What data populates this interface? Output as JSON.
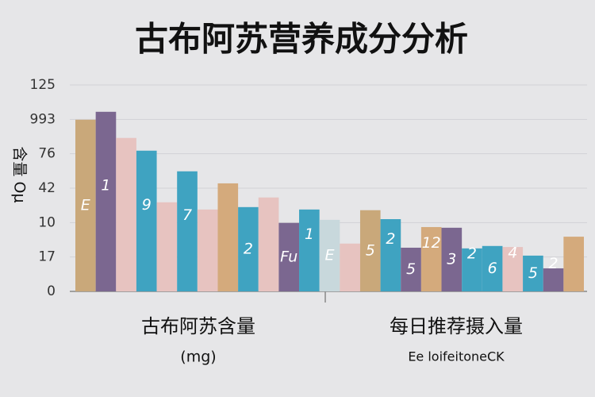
{
  "chart_data": {
    "type": "bar",
    "title": "古布阿苏营养成分分析",
    "y_label": "含量 Oμ",
    "groups": [
      {
        "label": "古布阿苏含量",
        "sublabel": "(mg)"
      },
      {
        "label": "每日推荐摄入量",
        "sublabel": "Ee loifeitoneCK"
      }
    ],
    "ylim": [
      0,
      6
    ],
    "yticks": [
      0,
      {
        "value": 1,
        "label": "17"
      },
      {
        "value": 2,
        "label": "10"
      },
      {
        "value": 3,
        "label": "42"
      },
      {
        "value": 4,
        "label": "76"
      },
      {
        "value": 5,
        "label": "993"
      },
      {
        "value": 6,
        "label": "125"
      }
    ],
    "grid": true,
    "values": [
      4.99,
      5.22,
      4.46,
      4.09,
      2.59,
      3.49,
      2.38,
      3.14,
      2.45,
      2.73,
      1.99,
      2.38,
      2.08,
      1.39,
      2.36,
      2.1,
      1.27,
      1.87,
      1.85,
      1.25,
      1.32,
      1.29,
      1.04,
      0.67,
      1.59
    ],
    "colors": [
      "#c9a87a",
      "#7b6790",
      "#e7c3c0",
      "#3fa3c1",
      "#e7c3c0",
      "#3fa3c1",
      "#e7c3c0",
      "#d4aa7c",
      "#3fa3c1",
      "#e7c3c0",
      "#7b6790",
      "#3fa3c1",
      "#c8d8dc",
      "#e7c3c0",
      "#c9a87a",
      "#3fa3c1",
      "#7b6790",
      "#d4aa7c",
      "#7b6790",
      "#3fa3c1",
      "#3fa3c1",
      "#e7c3c0",
      "#3fa3c1",
      "#7b6790",
      "#d4aa7c"
    ],
    "bar_labels": [
      "E",
      "1",
      null,
      "9",
      null,
      "7",
      null,
      null,
      "2",
      null,
      "Fu",
      "1",
      "E",
      null,
      "5",
      "2",
      "5",
      "12",
      "3",
      "2",
      "6",
      "4",
      "5",
      "2",
      null
    ],
    "group_split": 13
  }
}
